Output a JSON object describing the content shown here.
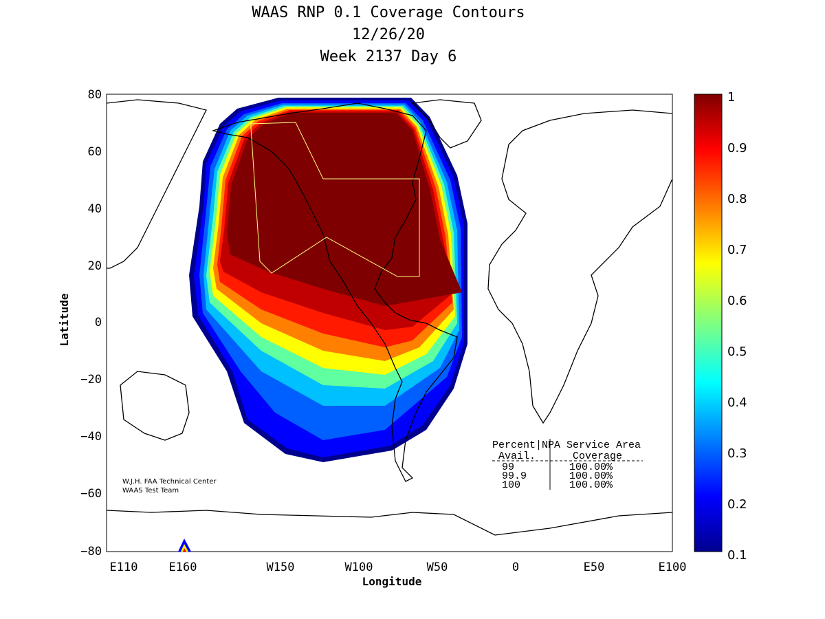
{
  "title": {
    "line1": "WAAS RNP 0.1 Coverage Contours",
    "line2": "12/26/20",
    "line3": "Week 2137 Day 6"
  },
  "axes": {
    "xlabel": "Longitude",
    "ylabel": "Latitude",
    "xticks": [
      "E110",
      "E160",
      "W150",
      "W100",
      "W50",
      "0",
      "E50",
      "E100"
    ],
    "yticks": [
      "80",
      "60",
      "40",
      "20",
      "0",
      "−20",
      "−40",
      "−60",
      "−80"
    ]
  },
  "credit": {
    "line1": "W.J.H. FAA Technical Center",
    "line2": "WAAS Test Team"
  },
  "table": {
    "header1": "Percent|NPA Service Area",
    "header2": " Avail.      Coverage",
    "rows": [
      {
        "avail": "99",
        "coverage": "100.00%"
      },
      {
        "avail": "99.9",
        "coverage": "100.00%"
      },
      {
        "avail": "100",
        "coverage": "100.00%"
      }
    ]
  },
  "colorbar": {
    "ticks": [
      "1",
      "0.9",
      "0.8",
      "0.7",
      "0.6",
      "0.5",
      "0.4",
      "0.3",
      "0.2",
      "0.1"
    ],
    "colors": [
      "#7f0000",
      "#ff0000",
      "#ff8000",
      "#ffff00",
      "#80ff80",
      "#00ffff",
      "#0080ff",
      "#0000ff",
      "#00008f"
    ]
  }
}
